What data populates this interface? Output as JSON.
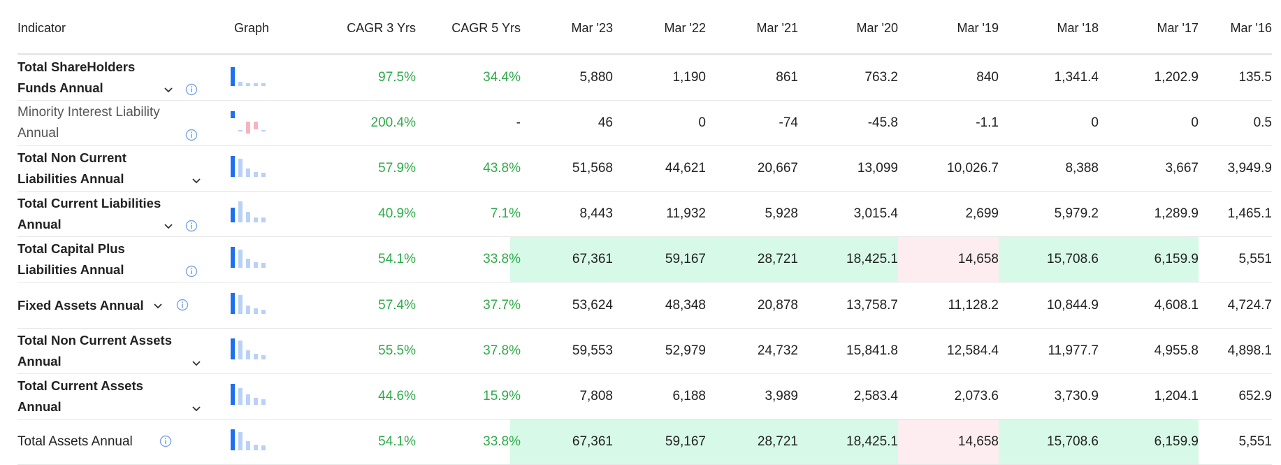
{
  "columns": {
    "indicator": "Indicator",
    "graph": "Graph",
    "cagr3": "CAGR 3 Yrs",
    "cagr5": "CAGR 5 Yrs",
    "years": [
      "Mar '23",
      "Mar '22",
      "Mar '21",
      "Mar '20",
      "Mar '19",
      "Mar '18",
      "Mar '17",
      "Mar '16"
    ]
  },
  "colors": {
    "positive_text": "#2eab49",
    "highlight_up": "#d7fae8",
    "highlight_down": "#fdedf0",
    "bar_primary": "#1e6ff1",
    "bar_secondary": "#b9d1f7",
    "bar_negative": "#f7b3bd",
    "info_icon": "#7aa6e8"
  },
  "rows": [
    {
      "label": "Total ShareHolders Funds Annual",
      "weight": "bold",
      "expandable": true,
      "info": true,
      "cagr3": "97.5%",
      "cagr5": "34.4%",
      "values": [
        "5,880",
        "1,190",
        "861",
        "763.2",
        "840",
        "1,341.4",
        "1,202.9",
        "135.5"
      ],
      "highlights": [
        "",
        "",
        "",
        "",
        "",
        "",
        "",
        ""
      ],
      "spark": [
        0.9,
        0.2,
        0.15,
        0.15,
        0.15
      ]
    },
    {
      "label": "Minority Interest Liability Annual",
      "weight": "light",
      "expandable": false,
      "info": true,
      "cagr3": "200.4%",
      "cagr5": "-",
      "values": [
        "46",
        "0",
        "-74",
        "-45.8",
        "-1.1",
        "0",
        "0",
        "0.5"
      ],
      "highlights": [
        "",
        "",
        "",
        "",
        "",
        "",
        "",
        ""
      ],
      "spark": [
        0.35,
        0,
        -0.55,
        -0.35,
        0
      ]
    },
    {
      "label": "Total Non Current Liabilities Annual",
      "weight": "bold",
      "expandable": true,
      "info": false,
      "cagr3": "57.9%",
      "cagr5": "43.8%",
      "values": [
        "51,568",
        "44,621",
        "20,667",
        "13,099",
        "10,026.7",
        "8,388",
        "3,667",
        "3,949.9"
      ],
      "highlights": [
        "",
        "",
        "",
        "",
        "",
        "",
        "",
        ""
      ],
      "spark": [
        1.0,
        0.87,
        0.4,
        0.25,
        0.2
      ]
    },
    {
      "label": "Total Current Liabilities Annual",
      "weight": "bold",
      "expandable": true,
      "info": true,
      "cagr3": "40.9%",
      "cagr5": "7.1%",
      "values": [
        "8,443",
        "11,932",
        "5,928",
        "3,015.4",
        "2,699",
        "5,979.2",
        "1,289.9",
        "1,465.1"
      ],
      "highlights": [
        "",
        "",
        "",
        "",
        "",
        "",
        "",
        ""
      ],
      "spark": [
        0.71,
        1.0,
        0.5,
        0.25,
        0.23
      ]
    },
    {
      "label": "Total Capital Plus Liabilities Annual",
      "weight": "bold",
      "expandable": false,
      "info": true,
      "cagr3": "54.1%",
      "cagr5": "33.8%",
      "values": [
        "67,361",
        "59,167",
        "28,721",
        "18,425.1",
        "14,658",
        "15,708.6",
        "6,159.9",
        "5,551"
      ],
      "highlights": [
        "up",
        "up",
        "up",
        "up",
        "down",
        "up",
        "up",
        ""
      ],
      "spark": [
        1.0,
        0.88,
        0.43,
        0.27,
        0.22
      ]
    },
    {
      "label": "Fixed Assets Annual",
      "weight": "bold",
      "expandable": true,
      "info": true,
      "cagr3": "57.4%",
      "cagr5": "37.7%",
      "values": [
        "53,624",
        "48,348",
        "20,878",
        "13,758.7",
        "11,128.2",
        "10,844.9",
        "4,608.1",
        "4,724.7"
      ],
      "highlights": [
        "",
        "",
        "",
        "",
        "",
        "",
        "",
        ""
      ],
      "spark": [
        1.0,
        0.9,
        0.39,
        0.26,
        0.21
      ]
    },
    {
      "label": "Total Non Current Assets Annual",
      "weight": "bold",
      "expandable": true,
      "info": false,
      "cagr3": "55.5%",
      "cagr5": "37.8%",
      "values": [
        "59,553",
        "52,979",
        "24,732",
        "15,841.8",
        "12,584.4",
        "11,977.7",
        "4,955.8",
        "4,898.1"
      ],
      "highlights": [
        "",
        "",
        "",
        "",
        "",
        "",
        "",
        ""
      ],
      "spark": [
        1.0,
        0.89,
        0.42,
        0.27,
        0.21
      ]
    },
    {
      "label": "Total Current Assets Annual",
      "weight": "bold",
      "expandable": true,
      "info": false,
      "cagr3": "44.6%",
      "cagr5": "15.9%",
      "values": [
        "7,808",
        "6,188",
        "3,989",
        "2,583.4",
        "2,073.6",
        "3,730.9",
        "1,204.1",
        "652.9"
      ],
      "highlights": [
        "",
        "",
        "",
        "",
        "",
        "",
        "",
        ""
      ],
      "spark": [
        1.0,
        0.79,
        0.51,
        0.33,
        0.27
      ]
    },
    {
      "label": "Total Assets Annual",
      "weight": "normal",
      "expandable": false,
      "info": true,
      "cagr3": "54.1%",
      "cagr5": "33.8%",
      "values": [
        "67,361",
        "59,167",
        "28,721",
        "18,425.1",
        "14,658",
        "15,708.6",
        "6,159.9",
        "5,551"
      ],
      "highlights": [
        "up",
        "up",
        "up",
        "up",
        "down",
        "up",
        "up",
        ""
      ],
      "spark": [
        1.0,
        0.88,
        0.43,
        0.27,
        0.22
      ]
    }
  ]
}
